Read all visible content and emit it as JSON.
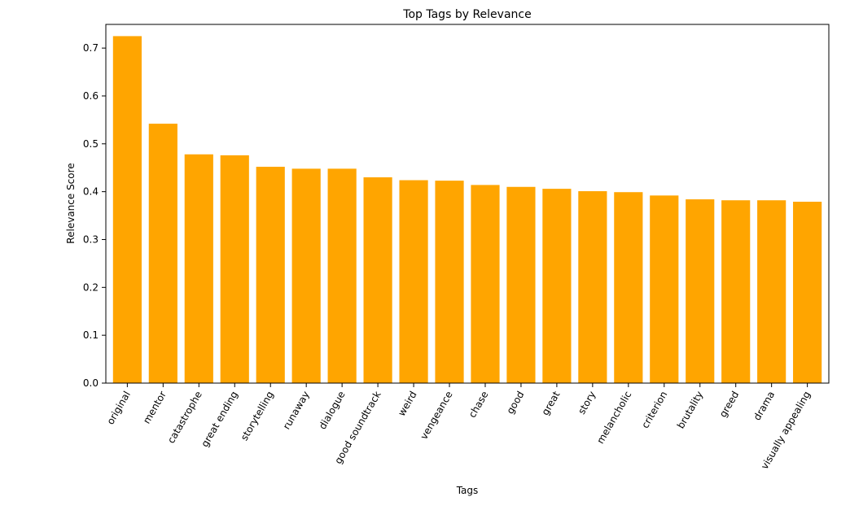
{
  "chart_data": {
    "type": "bar",
    "title": "Top Tags by Relevance",
    "xlabel": "Tags",
    "ylabel": "Relevance Score",
    "categories": [
      "original",
      "mentor",
      "catastrophe",
      "great ending",
      "storytelling",
      "runaway",
      "dialogue",
      "good soundtrack",
      "weird",
      "vengeance",
      "chase",
      "good",
      "great",
      "story",
      "melancholic",
      "criterion",
      "brutality",
      "greed",
      "drama",
      "visually appealing"
    ],
    "values": [
      0.725,
      0.542,
      0.478,
      0.476,
      0.452,
      0.448,
      0.448,
      0.43,
      0.424,
      0.423,
      0.414,
      0.41,
      0.406,
      0.401,
      0.399,
      0.392,
      0.384,
      0.382,
      0.382,
      0.379
    ],
    "ylim": [
      0,
      0.7495
    ],
    "yticks": [
      0.0,
      0.1,
      0.2,
      0.3,
      0.4,
      0.5,
      0.6,
      0.7
    ],
    "ytick_labels": [
      "0.0",
      "0.1",
      "0.2",
      "0.3",
      "0.4",
      "0.5",
      "0.6",
      "0.7"
    ],
    "bar_color": "#ffa500",
    "grid": false,
    "legend": "none"
  }
}
